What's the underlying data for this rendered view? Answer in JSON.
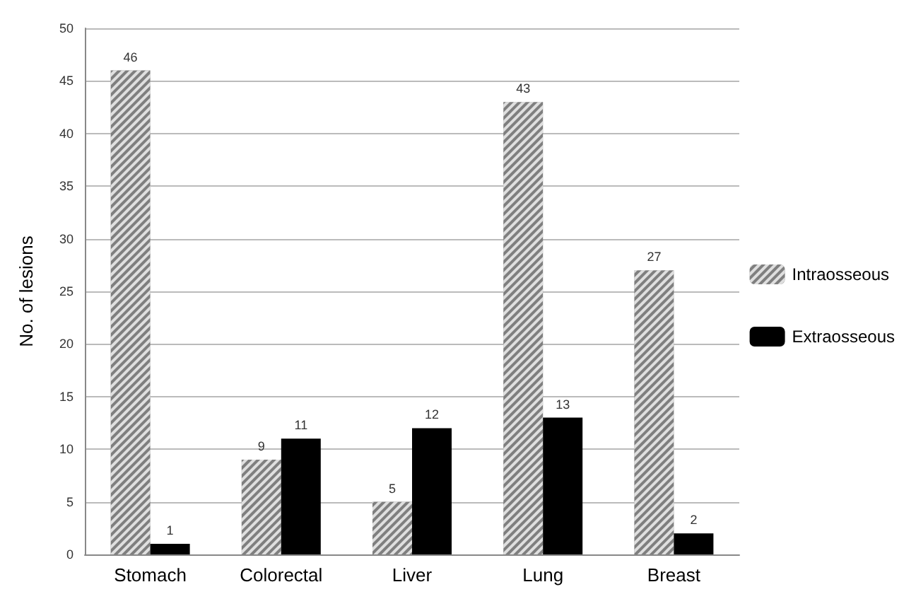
{
  "chart_data": {
    "type": "bar",
    "ylabel": "No. of lesions",
    "categories": [
      "Stomach",
      "Colorectal",
      "Liver",
      "Lung",
      "Breast"
    ],
    "series": [
      {
        "name": "Intraosseous",
        "color": "#7f7f7f",
        "values": [
          46,
          9,
          5,
          43,
          27
        ]
      },
      {
        "name": "Extraosseous",
        "color": "#000000",
        "values": [
          1,
          11,
          12,
          13,
          2
        ]
      }
    ],
    "ylim": [
      0,
      50
    ],
    "yticks": [
      0,
      5,
      10,
      15,
      20,
      25,
      30,
      35,
      40,
      45,
      50
    ],
    "grid": "y",
    "legend": "right",
    "data_labels": true
  }
}
